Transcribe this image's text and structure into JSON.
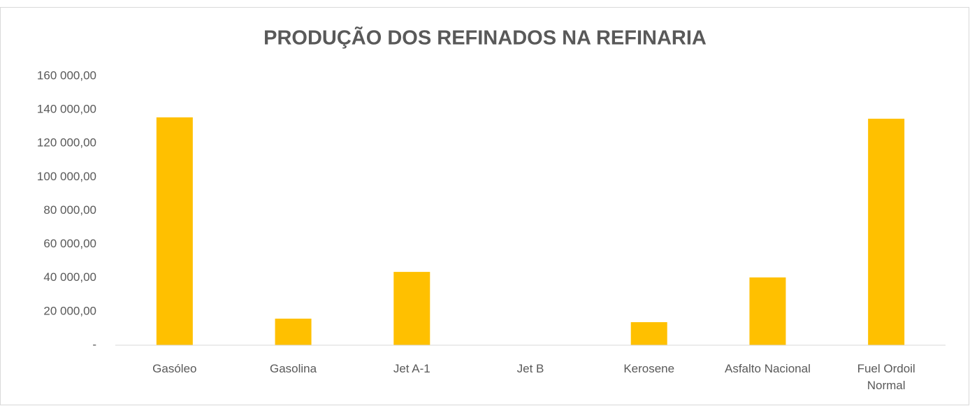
{
  "chart_data": {
    "type": "bar",
    "title": "PRODUÇÃO DOS REFINADOS NA REFINARIA",
    "categories": [
      "Gasóleo",
      "Gasolina",
      "Jet A-1",
      "Jet B",
      "Kerosene",
      "Asfalto Nacional",
      "Fuel Ordoil Normal"
    ],
    "values": [
      135500,
      15800,
      43600,
      0,
      13700,
      40300,
      134700
    ],
    "color": "#ffc000",
    "ylim": [
      0,
      160000
    ],
    "yticks": [
      {
        "value": 0,
        "label": "-"
      },
      {
        "value": 20000,
        "label": "20 000,00"
      },
      {
        "value": 40000,
        "label": "40 000,00"
      },
      {
        "value": 60000,
        "label": "60 000,00"
      },
      {
        "value": 80000,
        "label": "80 000,00"
      },
      {
        "value": 100000,
        "label": "100 000,00"
      },
      {
        "value": 120000,
        "label": "120 000,00"
      },
      {
        "value": 140000,
        "label": "140 000,00"
      },
      {
        "value": 160000,
        "label": "160 000,00"
      }
    ],
    "grid": false
  }
}
